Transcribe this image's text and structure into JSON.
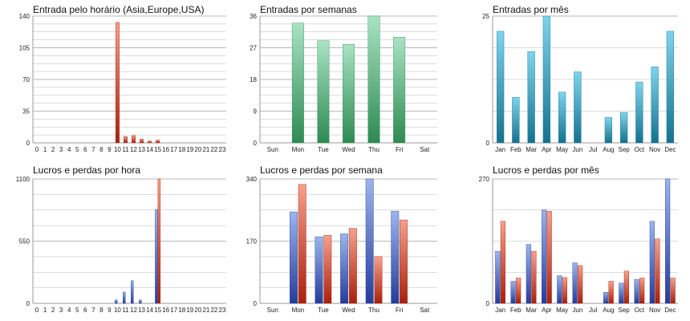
{
  "colors": {
    "red": [
      "#f6a08c",
      "#a8200d"
    ],
    "green": [
      "#a9e3c4",
      "#2d8a52"
    ],
    "teal": [
      "#7fd3ec",
      "#14728e"
    ],
    "blue": [
      "#9bb5ec",
      "#243c9a"
    ],
    "grid": "#b8b8b8",
    "axis": "#9a9a9a"
  },
  "chart_data": [
    {
      "type": "bar",
      "title": "Entrada pelo horário (Asia,Europe,USA)",
      "categories": [
        "0",
        "1",
        "2",
        "3",
        "4",
        "5",
        "6",
        "7",
        "8",
        "9",
        "10",
        "11",
        "12",
        "13",
        "14",
        "15",
        "16",
        "17",
        "18",
        "19",
        "20",
        "21",
        "22",
        "23"
      ],
      "series": [
        {
          "values": [
            0,
            0,
            0,
            0,
            0,
            0,
            0,
            0,
            0,
            0,
            133,
            7,
            8,
            4,
            2,
            3,
            0,
            0,
            0,
            0,
            0,
            0,
            0,
            0
          ],
          "color": "red"
        }
      ],
      "yticks": [
        "0",
        "35",
        "70",
        "105",
        "140"
      ],
      "ylim": [
        0,
        140
      ],
      "grid": true
    },
    {
      "type": "bar",
      "title": "Entradas por semanas",
      "categories": [
        "Sun",
        "Mon",
        "Tue",
        "Wed",
        "Thu",
        "Fri",
        "Sat"
      ],
      "series": [
        {
          "values": [
            0,
            34,
            29,
            28,
            36,
            30,
            0
          ],
          "color": "green"
        }
      ],
      "yticks": [
        "0",
        "9",
        "18",
        "27",
        "36"
      ],
      "ylim": [
        0,
        36
      ],
      "grid": true
    },
    {
      "type": "bar",
      "title": "Entradas por mês",
      "categories": [
        "Jan",
        "Feb",
        "Mar",
        "Apr",
        "May",
        "Jun",
        "Jul",
        "Aug",
        "Sep",
        "Oct",
        "Nov",
        "Dec"
      ],
      "series": [
        {
          "values": [
            22,
            9,
            18,
            25,
            10,
            14,
            0,
            5,
            6,
            12,
            15,
            22
          ],
          "color": "teal"
        }
      ],
      "yticks": [
        "0",
        "25"
      ],
      "ylim": [
        0,
        25
      ],
      "grid": true
    },
    {
      "type": "bar",
      "title": "Lucros e perdas por hora",
      "categories": [
        "0",
        "1",
        "2",
        "3",
        "4",
        "5",
        "6",
        "7",
        "8",
        "9",
        "10",
        "11",
        "12",
        "13",
        "14",
        "15",
        "16",
        "17",
        "18",
        "19",
        "20",
        "21",
        "22",
        "23"
      ],
      "series": [
        {
          "values": [
            0,
            0,
            0,
            0,
            0,
            0,
            0,
            0,
            0,
            0,
            30,
            100,
            200,
            30,
            0,
            830,
            0,
            0,
            0,
            0,
            0,
            0,
            0,
            0
          ],
          "color": "blue"
        },
        {
          "values": [
            0,
            0,
            0,
            0,
            0,
            0,
            0,
            0,
            0,
            0,
            0,
            0,
            0,
            0,
            0,
            1100,
            0,
            0,
            0,
            0,
            0,
            0,
            0,
            0
          ],
          "color": "red"
        }
      ],
      "yticks": [
        "0",
        "550",
        "1100"
      ],
      "ylim": [
        0,
        1100
      ],
      "grid": true
    },
    {
      "type": "bar",
      "title": "Lucros e perdas por semana",
      "categories": [
        "Sun",
        "Mon",
        "Tue",
        "Wed",
        "Thu",
        "Fri",
        "Sat"
      ],
      "series": [
        {
          "values": [
            0,
            250,
            182,
            190,
            340,
            252,
            0
          ],
          "color": "blue"
        },
        {
          "values": [
            0,
            325,
            186,
            205,
            128,
            228,
            0
          ],
          "color": "red"
        }
      ],
      "yticks": [
        "0",
        "170",
        "340"
      ],
      "ylim": [
        0,
        340
      ],
      "grid": true
    },
    {
      "type": "bar",
      "title": "Lucros e perdas por mês",
      "categories": [
        "Jan",
        "Feb",
        "Mar",
        "Apr",
        "May",
        "Jun",
        "Jul",
        "Aug",
        "Sep",
        "Oct",
        "Nov",
        "Dec"
      ],
      "series": [
        {
          "values": [
            113,
            48,
            128,
            203,
            60,
            88,
            0,
            24,
            44,
            52,
            178,
            270
          ],
          "color": "blue"
        },
        {
          "values": [
            178,
            55,
            113,
            200,
            56,
            82,
            0,
            48,
            70,
            55,
            140,
            55
          ],
          "color": "red"
        }
      ],
      "yticks": [
        "0",
        "270"
      ],
      "ylim": [
        0,
        270
      ],
      "grid": true
    }
  ]
}
